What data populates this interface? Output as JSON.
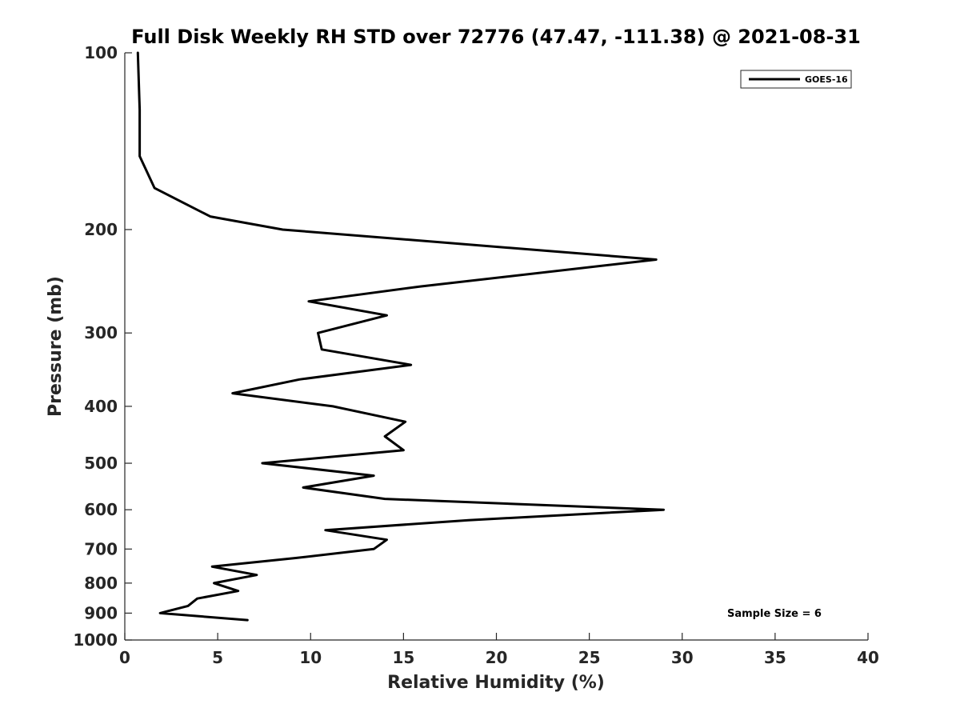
{
  "chart_data": {
    "type": "line",
    "title": "Full Disk Weekly RH STD over 72776 (47.47, -111.38) @ 2021-08-31",
    "xlabel": "Relative Humidity (%)",
    "ylabel": "Pressure (mb)",
    "xlim": [
      0,
      40
    ],
    "ylim": [
      100,
      1000
    ],
    "y_scale": "log",
    "y_reversed": true,
    "grid": false,
    "x_ticks": [
      0,
      5,
      10,
      15,
      20,
      25,
      30,
      35,
      40
    ],
    "x_tick_labels": [
      "0",
      "5",
      "10",
      "15",
      "20",
      "25",
      "30",
      "35",
      "40"
    ],
    "y_ticks": [
      100,
      200,
      300,
      400,
      500,
      600,
      700,
      800,
      900,
      1000
    ],
    "y_tick_labels": [
      "100",
      "200",
      "300",
      "400",
      "500",
      "600",
      "700",
      "800",
      "900",
      "1000"
    ],
    "legend_position": "top-right",
    "annotation": "Sample Size = 6",
    "series": [
      {
        "name": "GOES-16",
        "color": "#000000",
        "points": [
          [
            0.7,
            100
          ],
          [
            0.8,
            125
          ],
          [
            0.8,
            150
          ],
          [
            1.6,
            170
          ],
          [
            4.6,
            190
          ],
          [
            8.5,
            200
          ],
          [
            28.6,
            225
          ],
          [
            15.9,
            250
          ],
          [
            9.9,
            265
          ],
          [
            14.1,
            280
          ],
          [
            10.4,
            300
          ],
          [
            10.6,
            320
          ],
          [
            15.4,
            340
          ],
          [
            9.4,
            360
          ],
          [
            5.8,
            380
          ],
          [
            11.2,
            400
          ],
          [
            15.1,
            425
          ],
          [
            14.0,
            450
          ],
          [
            15.0,
            475
          ],
          [
            7.4,
            500
          ],
          [
            13.4,
            525
          ],
          [
            9.6,
            550
          ],
          [
            14.0,
            575
          ],
          [
            29.0,
            600
          ],
          [
            18.5,
            625
          ],
          [
            10.8,
            650
          ],
          [
            14.1,
            675
          ],
          [
            13.4,
            700
          ],
          [
            9.2,
            725
          ],
          [
            4.7,
            750
          ],
          [
            7.1,
            775
          ],
          [
            4.8,
            800
          ],
          [
            6.1,
            825
          ],
          [
            3.9,
            850
          ],
          [
            3.4,
            875
          ],
          [
            1.9,
            900
          ],
          [
            6.6,
            925
          ]
        ]
      }
    ]
  }
}
